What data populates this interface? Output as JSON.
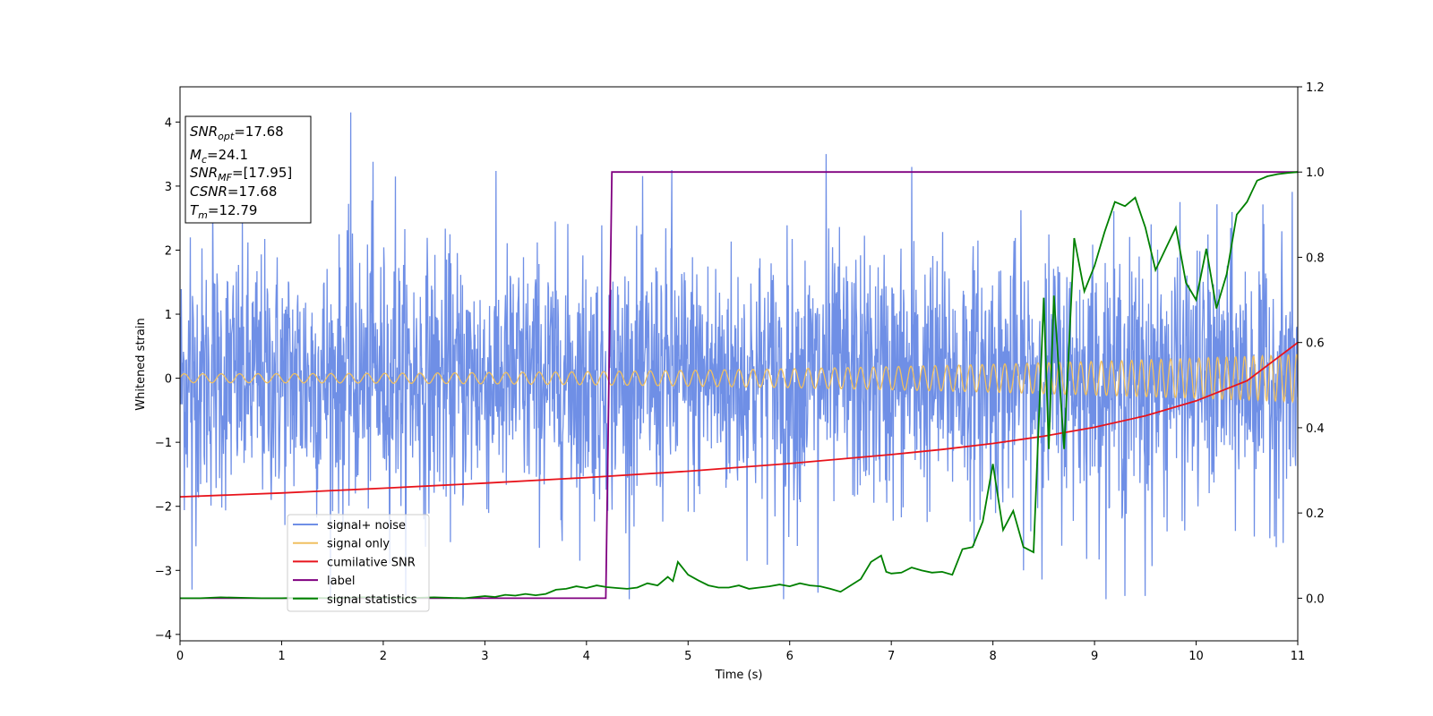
{
  "chart_data": {
    "type": "line",
    "xlabel": "Time (s)",
    "ylabel": "Whitened strain",
    "xlim": [
      0,
      11
    ],
    "ylim_left": [
      -4.1,
      4.55
    ],
    "ylim_right": [
      -0.1,
      1.2
    ],
    "x_ticks": [
      "0",
      "1",
      "2",
      "3",
      "4",
      "5",
      "6",
      "7",
      "8",
      "9",
      "10",
      "11"
    ],
    "y_ticks_left": [
      "−4",
      "−3",
      "−2",
      "−1",
      "0",
      "1",
      "2",
      "3",
      "4"
    ],
    "y_ticks_right": [
      "0.0",
      "0.2",
      "0.4",
      "0.6",
      "0.8",
      "1.0",
      "1.2"
    ],
    "legend_position": "lower-left",
    "grid": false,
    "annotation": {
      "lines": [
        {
          "sym": "SNR",
          "sub": "opt",
          "rest": "=17.68"
        },
        {
          "sym": "M",
          "sub": "c",
          "rest": "=24.1"
        },
        {
          "sym": "SNR",
          "sub": "MF",
          "rest": "=[17.95]"
        },
        {
          "sym": "CSNR",
          "sub": "",
          "rest": "=17.68"
        },
        {
          "sym": "T",
          "sub": "m",
          "rest": "=12.79"
        }
      ]
    },
    "series": [
      {
        "name": "signal+ noise",
        "axis": "left",
        "color": "#6f8fe6",
        "description_stats": {
          "typical_std": 1.0,
          "min": -3.45,
          "max": 4.15
        },
        "spikes": [
          [
            0.1,
            2.2
          ],
          [
            0.32,
            2.75
          ],
          [
            1.68,
            4.15
          ],
          [
            1.9,
            3.38
          ],
          [
            2.12,
            3.15
          ],
          [
            4.84,
            3.25
          ],
          [
            6.36,
            3.5
          ],
          [
            7.2,
            3.3
          ],
          [
            0.12,
            -3.3
          ],
          [
            5.94,
            -3.45
          ],
          [
            6.28,
            -3.35
          ],
          [
            9.3,
            -3.4
          ],
          [
            9.5,
            -3.4
          ]
        ]
      },
      {
        "name": "signal only",
        "axis": "left",
        "color": "#f0c060",
        "amplitude_start": 0.07,
        "amplitude_end": 0.37,
        "freq_start_hz": 5.5,
        "freq_end_hz": 12
      },
      {
        "name": "cumilative SNR",
        "axis": "right",
        "color": "#e8141c",
        "x": [
          0,
          1,
          2,
          3,
          4,
          5,
          6,
          7,
          7.5,
          8,
          8.5,
          9,
          9.5,
          10,
          10.5,
          11
        ],
        "y": [
          0.238,
          0.247,
          0.258,
          0.27,
          0.283,
          0.298,
          0.316,
          0.337,
          0.349,
          0.363,
          0.38,
          0.401,
          0.428,
          0.463,
          0.51,
          0.6
        ]
      },
      {
        "name": "label",
        "axis": "right",
        "color": "#800080",
        "x": [
          0,
          4.19,
          4.25,
          11
        ],
        "y": [
          0.0,
          0.0,
          1.0,
          1.0
        ]
      },
      {
        "name": "signal statistics",
        "axis": "right",
        "color": "#008000",
        "x": [
          0,
          0.2,
          0.4,
          0.6,
          0.8,
          1.0,
          1.2,
          1.5,
          1.8,
          2.0,
          2.2,
          2.5,
          2.8,
          3.0,
          3.1,
          3.2,
          3.3,
          3.4,
          3.5,
          3.6,
          3.7,
          3.8,
          3.9,
          4.0,
          4.1,
          4.2,
          4.3,
          4.4,
          4.5,
          4.6,
          4.7,
          4.8,
          4.85,
          4.9,
          5.0,
          5.1,
          5.2,
          5.3,
          5.4,
          5.5,
          5.6,
          5.7,
          5.8,
          5.9,
          6.0,
          6.1,
          6.2,
          6.3,
          6.4,
          6.5,
          6.6,
          6.7,
          6.8,
          6.9,
          6.95,
          7.0,
          7.1,
          7.2,
          7.3,
          7.4,
          7.5,
          7.6,
          7.7,
          7.8,
          7.9,
          8.0,
          8.1,
          8.2,
          8.3,
          8.4,
          8.5,
          8.55,
          8.6,
          8.7,
          8.8,
          8.9,
          9.0,
          9.1,
          9.2,
          9.3,
          9.4,
          9.5,
          9.6,
          9.7,
          9.8,
          9.9,
          10.0,
          10.1,
          10.2,
          10.3,
          10.4,
          10.5,
          10.6,
          10.7,
          10.8,
          10.9,
          11.0
        ],
        "y": [
          0.0,
          0.0,
          0.002,
          0.001,
          0.0,
          0.0,
          0.001,
          0.0,
          0.002,
          0.001,
          0.0,
          0.002,
          0.0,
          0.005,
          0.003,
          0.008,
          0.006,
          0.01,
          0.007,
          0.01,
          0.02,
          0.022,
          0.028,
          0.024,
          0.03,
          0.026,
          0.024,
          0.022,
          0.025,
          0.035,
          0.03,
          0.05,
          0.04,
          0.085,
          0.055,
          0.042,
          0.03,
          0.025,
          0.025,
          0.03,
          0.022,
          0.025,
          0.028,
          0.032,
          0.028,
          0.035,
          0.03,
          0.028,
          0.022,
          0.015,
          0.03,
          0.045,
          0.085,
          0.1,
          0.062,
          0.058,
          0.06,
          0.072,
          0.065,
          0.06,
          0.062,
          0.055,
          0.115,
          0.12,
          0.18,
          0.315,
          0.16,
          0.205,
          0.12,
          0.108,
          0.705,
          0.35,
          0.71,
          0.35,
          0.845,
          0.72,
          0.78,
          0.86,
          0.93,
          0.92,
          0.94,
          0.87,
          0.77,
          0.82,
          0.87,
          0.74,
          0.7,
          0.82,
          0.68,
          0.76,
          0.9,
          0.93,
          0.98,
          0.99,
          0.995,
          0.998,
          1.0
        ]
      }
    ]
  }
}
